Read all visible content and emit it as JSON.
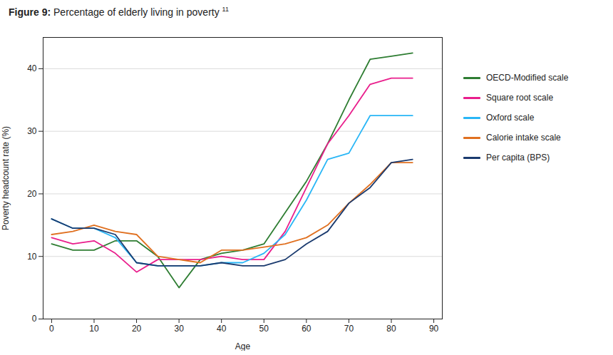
{
  "chart_data": {
    "type": "line",
    "title": "Figure 9: Percentage of elderly living in poverty",
    "annotations": [
      "11"
    ],
    "xlabel": "Age",
    "ylabel": "Poverty headcount rate (%)",
    "x": [
      0,
      5,
      10,
      15,
      20,
      25,
      30,
      35,
      40,
      45,
      50,
      55,
      60,
      65,
      70,
      75,
      80,
      85
    ],
    "series": [
      {
        "name": "OECD-Modified scale",
        "color": "#2e7d32",
        "values": [
          12.0,
          11.0,
          11.0,
          12.5,
          12.5,
          10.0,
          5.0,
          9.5,
          10.5,
          11.0,
          12.0,
          17.0,
          22.0,
          28.0,
          35.0,
          41.5,
          42.0,
          42.5
        ]
      },
      {
        "name": "Square root scale",
        "color": "#e91e8c",
        "values": [
          13.0,
          12.0,
          12.5,
          10.5,
          7.5,
          9.5,
          9.5,
          9.5,
          10.0,
          9.5,
          9.5,
          14.0,
          21.0,
          28.0,
          32.5,
          37.5,
          38.5,
          38.5
        ]
      },
      {
        "name": "Oxford scale",
        "color": "#29b6f6",
        "values": [
          16.0,
          14.5,
          14.5,
          13.0,
          9.0,
          8.5,
          8.5,
          8.5,
          9.0,
          9.0,
          10.5,
          13.5,
          19.0,
          25.5,
          26.5,
          32.5,
          32.5,
          32.5
        ]
      },
      {
        "name": "Calorie intake scale",
        "color": "#e07020",
        "values": [
          13.5,
          14.0,
          15.0,
          14.0,
          13.5,
          10.0,
          9.5,
          9.0,
          11.0,
          11.0,
          11.5,
          12.0,
          13.0,
          15.0,
          18.5,
          21.5,
          25.0,
          25.0
        ]
      },
      {
        "name": "Per capita (BPS)",
        "color": "#1a3a6e",
        "values": [
          16.0,
          14.5,
          14.5,
          13.5,
          9.0,
          8.5,
          8.5,
          8.5,
          9.0,
          8.5,
          8.5,
          9.5,
          12.0,
          14.0,
          18.5,
          21.0,
          25.0,
          25.5
        ]
      }
    ],
    "xlim": [
      -2,
      92
    ],
    "xticks": [
      0,
      10,
      20,
      30,
      40,
      50,
      60,
      70,
      80,
      90
    ],
    "ylim": [
      0,
      45
    ],
    "yticks": [
      0,
      10,
      20,
      30,
      40
    ],
    "grid": true,
    "legend": "right"
  }
}
